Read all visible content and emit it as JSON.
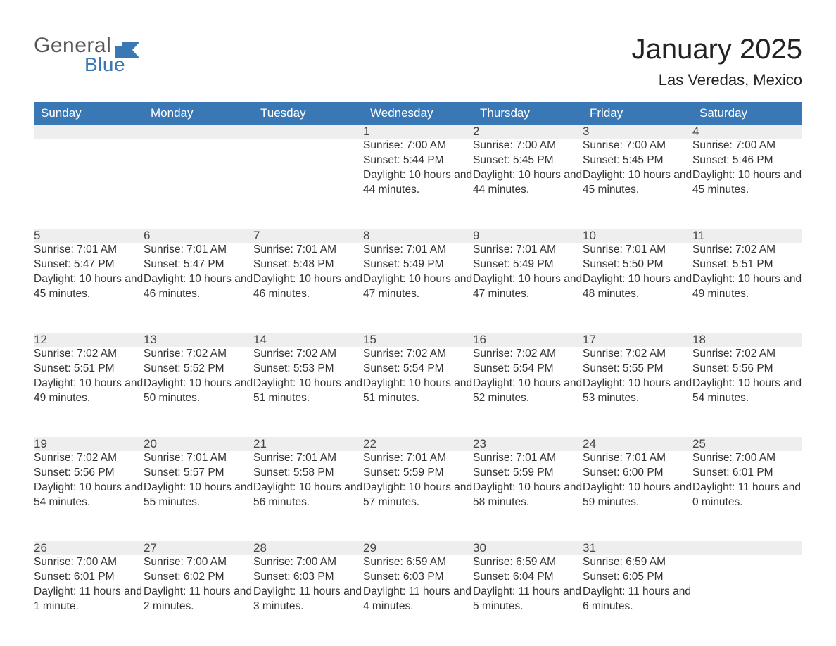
{
  "brand": {
    "text1": "General",
    "text2": "Blue",
    "icon_color": "#3a78b5",
    "text1_color": "#555555",
    "text2_color": "#3a78b5"
  },
  "title": "January 2025",
  "location": "Las Veredas, Mexico",
  "colors": {
    "header_bg": "#3a78b5",
    "header_text": "#ffffff",
    "daynum_bg": "#eeeeee",
    "row_border": "#3a78b5",
    "body_text": "#333333",
    "page_bg": "#ffffff"
  },
  "fonts": {
    "title_size": 40,
    "location_size": 22,
    "weekday_size": 17,
    "daynum_size": 17,
    "cell_size": 15.5
  },
  "layout": {
    "columns": 7,
    "rows": 5,
    "week_start": "Sunday"
  },
  "weekdays": [
    "Sunday",
    "Monday",
    "Tuesday",
    "Wednesday",
    "Thursday",
    "Friday",
    "Saturday"
  ],
  "weeks": [
    [
      null,
      null,
      null,
      {
        "n": "1",
        "sunrise": "7:00 AM",
        "sunset": "5:44 PM",
        "daylight": "10 hours and 44 minutes."
      },
      {
        "n": "2",
        "sunrise": "7:00 AM",
        "sunset": "5:45 PM",
        "daylight": "10 hours and 44 minutes."
      },
      {
        "n": "3",
        "sunrise": "7:00 AM",
        "sunset": "5:45 PM",
        "daylight": "10 hours and 45 minutes."
      },
      {
        "n": "4",
        "sunrise": "7:00 AM",
        "sunset": "5:46 PM",
        "daylight": "10 hours and 45 minutes."
      }
    ],
    [
      {
        "n": "5",
        "sunrise": "7:01 AM",
        "sunset": "5:47 PM",
        "daylight": "10 hours and 45 minutes."
      },
      {
        "n": "6",
        "sunrise": "7:01 AM",
        "sunset": "5:47 PM",
        "daylight": "10 hours and 46 minutes."
      },
      {
        "n": "7",
        "sunrise": "7:01 AM",
        "sunset": "5:48 PM",
        "daylight": "10 hours and 46 minutes."
      },
      {
        "n": "8",
        "sunrise": "7:01 AM",
        "sunset": "5:49 PM",
        "daylight": "10 hours and 47 minutes."
      },
      {
        "n": "9",
        "sunrise": "7:01 AM",
        "sunset": "5:49 PM",
        "daylight": "10 hours and 47 minutes."
      },
      {
        "n": "10",
        "sunrise": "7:01 AM",
        "sunset": "5:50 PM",
        "daylight": "10 hours and 48 minutes."
      },
      {
        "n": "11",
        "sunrise": "7:02 AM",
        "sunset": "5:51 PM",
        "daylight": "10 hours and 49 minutes."
      }
    ],
    [
      {
        "n": "12",
        "sunrise": "7:02 AM",
        "sunset": "5:51 PM",
        "daylight": "10 hours and 49 minutes."
      },
      {
        "n": "13",
        "sunrise": "7:02 AM",
        "sunset": "5:52 PM",
        "daylight": "10 hours and 50 minutes."
      },
      {
        "n": "14",
        "sunrise": "7:02 AM",
        "sunset": "5:53 PM",
        "daylight": "10 hours and 51 minutes."
      },
      {
        "n": "15",
        "sunrise": "7:02 AM",
        "sunset": "5:54 PM",
        "daylight": "10 hours and 51 minutes."
      },
      {
        "n": "16",
        "sunrise": "7:02 AM",
        "sunset": "5:54 PM",
        "daylight": "10 hours and 52 minutes."
      },
      {
        "n": "17",
        "sunrise": "7:02 AM",
        "sunset": "5:55 PM",
        "daylight": "10 hours and 53 minutes."
      },
      {
        "n": "18",
        "sunrise": "7:02 AM",
        "sunset": "5:56 PM",
        "daylight": "10 hours and 54 minutes."
      }
    ],
    [
      {
        "n": "19",
        "sunrise": "7:02 AM",
        "sunset": "5:56 PM",
        "daylight": "10 hours and 54 minutes."
      },
      {
        "n": "20",
        "sunrise": "7:01 AM",
        "sunset": "5:57 PM",
        "daylight": "10 hours and 55 minutes."
      },
      {
        "n": "21",
        "sunrise": "7:01 AM",
        "sunset": "5:58 PM",
        "daylight": "10 hours and 56 minutes."
      },
      {
        "n": "22",
        "sunrise": "7:01 AM",
        "sunset": "5:59 PM",
        "daylight": "10 hours and 57 minutes."
      },
      {
        "n": "23",
        "sunrise": "7:01 AM",
        "sunset": "5:59 PM",
        "daylight": "10 hours and 58 minutes."
      },
      {
        "n": "24",
        "sunrise": "7:01 AM",
        "sunset": "6:00 PM",
        "daylight": "10 hours and 59 minutes."
      },
      {
        "n": "25",
        "sunrise": "7:00 AM",
        "sunset": "6:01 PM",
        "daylight": "11 hours and 0 minutes."
      }
    ],
    [
      {
        "n": "26",
        "sunrise": "7:00 AM",
        "sunset": "6:01 PM",
        "daylight": "11 hours and 1 minute."
      },
      {
        "n": "27",
        "sunrise": "7:00 AM",
        "sunset": "6:02 PM",
        "daylight": "11 hours and 2 minutes."
      },
      {
        "n": "28",
        "sunrise": "7:00 AM",
        "sunset": "6:03 PM",
        "daylight": "11 hours and 3 minutes."
      },
      {
        "n": "29",
        "sunrise": "6:59 AM",
        "sunset": "6:03 PM",
        "daylight": "11 hours and 4 minutes."
      },
      {
        "n": "30",
        "sunrise": "6:59 AM",
        "sunset": "6:04 PM",
        "daylight": "11 hours and 5 minutes."
      },
      {
        "n": "31",
        "sunrise": "6:59 AM",
        "sunset": "6:05 PM",
        "daylight": "11 hours and 6 minutes."
      },
      null
    ]
  ],
  "labels": {
    "sunrise": "Sunrise: ",
    "sunset": "Sunset: ",
    "daylight": "Daylight: "
  }
}
